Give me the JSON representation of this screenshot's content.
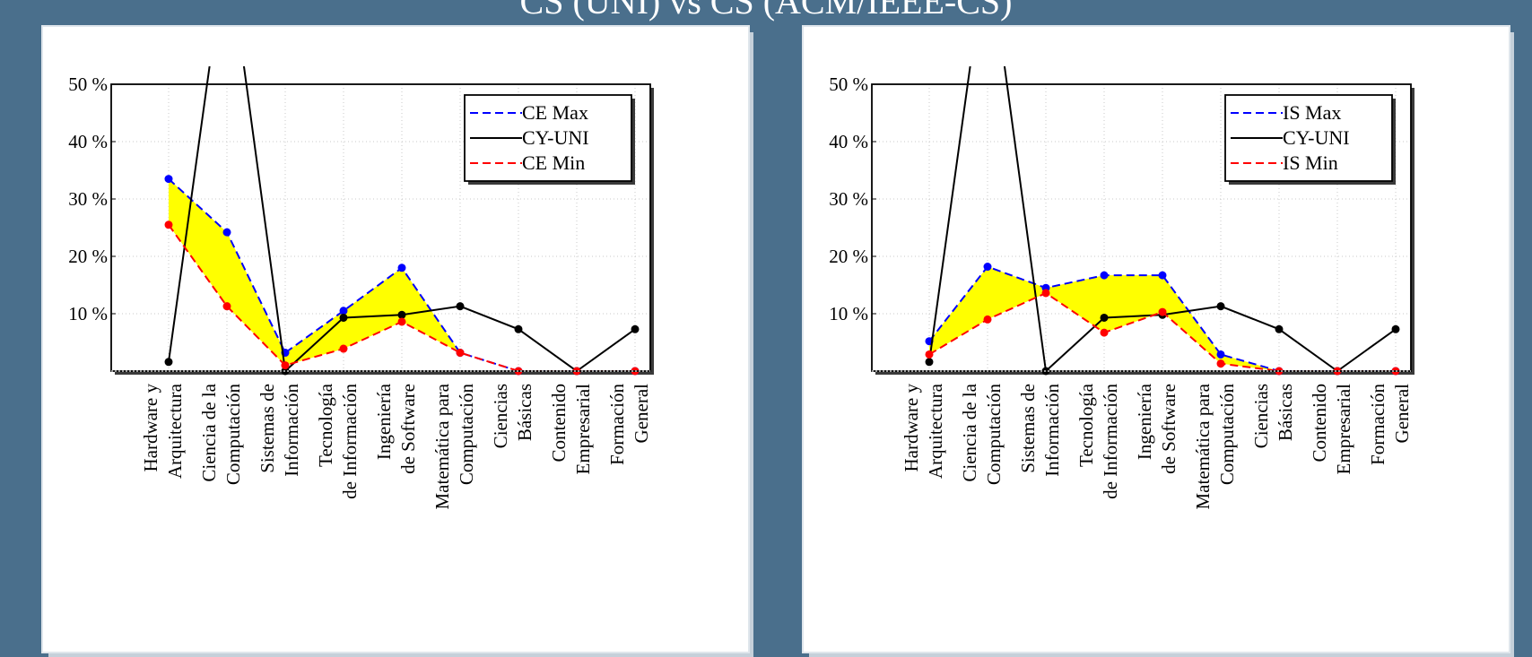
{
  "slide": {
    "title": "CS (UNI) vs CS (ACM/IEEE-CS)"
  },
  "chart_data": [
    {
      "type": "line",
      "categories": [
        [
          "Hardware y",
          "Arquitectura"
        ],
        [
          "Ciencia de la",
          "Computación"
        ],
        [
          "Sistemas de",
          "Información"
        ],
        [
          "Tecnología",
          "de Información"
        ],
        [
          "Ingeniería",
          "de Software"
        ],
        [
          "Matemática para",
          "Computación"
        ],
        [
          "Ciencias",
          "Básicas"
        ],
        [
          "Contenido",
          "Empresarial"
        ],
        [
          "Formación",
          "General"
        ]
      ],
      "ylim": [
        0,
        50
      ],
      "yticks": [
        10,
        20,
        30,
        40,
        50
      ],
      "ytick_labels": [
        "10 %",
        "20 %",
        "30 %",
        "40 %",
        "50 %"
      ],
      "grid": true,
      "legend_position": "top-right",
      "fill_between": {
        "upper": "CE Max",
        "lower": "CE Min",
        "color": "#ffff00"
      },
      "series": [
        {
          "name": "CE Max",
          "color": "#0000ff",
          "dash": true,
          "values": [
            33.5,
            24.2,
            3.2,
            10.5,
            18.0,
            3.2,
            0,
            0,
            0
          ]
        },
        {
          "name": "CY-UNI",
          "color": "#000000",
          "dash": false,
          "values": [
            1.6,
            75,
            0,
            9.3,
            9.8,
            11.3,
            7.3,
            0,
            7.3
          ]
        },
        {
          "name": "CE Min",
          "color": "#ff0000",
          "dash": true,
          "values": [
            25.5,
            11.3,
            1.0,
            3.9,
            8.6,
            3.2,
            0,
            0,
            0
          ]
        }
      ]
    },
    {
      "type": "line",
      "categories": [
        [
          "Hardware y",
          "Arquitectura"
        ],
        [
          "Ciencia de la",
          "Computación"
        ],
        [
          "Sistemas de",
          "Información"
        ],
        [
          "Tecnología",
          "de Información"
        ],
        [
          "Ingeniería",
          "de Software"
        ],
        [
          "Matemática para",
          "Computación"
        ],
        [
          "Ciencias",
          "Básicas"
        ],
        [
          "Contenido",
          "Empresarial"
        ],
        [
          "Formación",
          "General"
        ]
      ],
      "ylim": [
        0,
        50
      ],
      "yticks": [
        10,
        20,
        30,
        40,
        50
      ],
      "ytick_labels": [
        "10 %",
        "20 %",
        "30 %",
        "40 %",
        "50 %"
      ],
      "grid": true,
      "legend_position": "top-right",
      "fill_between": {
        "upper": "IS Max",
        "lower": "IS Min",
        "color": "#ffff00"
      },
      "series": [
        {
          "name": "IS Max",
          "color": "#0000ff",
          "dash": true,
          "values": [
            5.2,
            18.2,
            14.5,
            16.7,
            16.7,
            2.9,
            0,
            0,
            0
          ]
        },
        {
          "name": "CY-UNI",
          "color": "#000000",
          "dash": false,
          "values": [
            1.6,
            75,
            0,
            9.3,
            9.8,
            11.3,
            7.3,
            0,
            7.3
          ]
        },
        {
          "name": "IS Min",
          "color": "#ff0000",
          "dash": true,
          "values": [
            2.9,
            9.0,
            13.6,
            6.7,
            10.3,
            1.3,
            0,
            0,
            0
          ]
        }
      ]
    }
  ]
}
